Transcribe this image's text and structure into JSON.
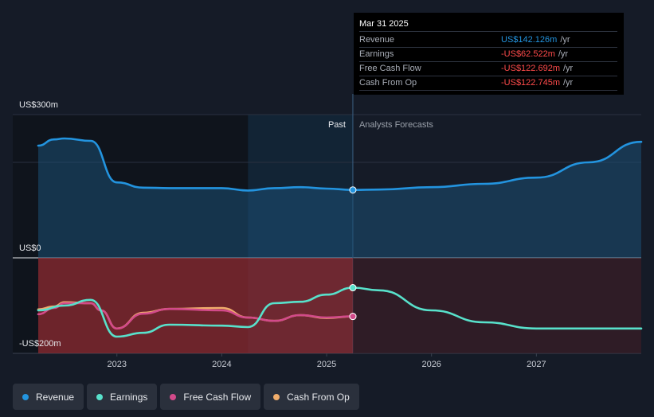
{
  "chart_data": {
    "type": "line",
    "y_axis_labels": [
      {
        "text": "US$300m",
        "value": 300
      },
      {
        "text": "US$0",
        "value": 0
      },
      {
        "text": "-US$200m",
        "value": -200
      }
    ],
    "ylim": [
      -200,
      300
    ],
    "xlim": [
      2022.25,
      2028.0
    ],
    "x_ticks": [
      {
        "label": "2023",
        "value": 2023.0
      },
      {
        "label": "2024",
        "value": 2024.0
      },
      {
        "label": "2025",
        "value": 2025.0
      },
      {
        "label": "2026",
        "value": 2026.0
      },
      {
        "label": "2027",
        "value": 2027.0
      }
    ],
    "past_label": "Past",
    "forecast_label": "Analysts Forecasts",
    "past_end": 2025.25,
    "past_highlight_start": 2024.25,
    "series": [
      {
        "name": "Revenue",
        "color": "#2394df",
        "x": [
          2022.25,
          2022.4,
          2022.5,
          2022.75,
          2023.0,
          2023.25,
          2023.5,
          2024.0,
          2024.25,
          2024.5,
          2024.75,
          2025.0,
          2025.25,
          2025.5,
          2026.0,
          2026.5,
          2027.0,
          2027.5,
          2028.0
        ],
        "y": [
          235,
          248,
          250,
          245,
          158,
          147,
          146,
          146,
          141,
          146,
          148,
          145,
          142.126,
          143,
          148,
          155,
          168,
          200,
          243
        ]
      },
      {
        "name": "Earnings",
        "color": "#58e1cb",
        "x": [
          2022.25,
          2022.5,
          2022.75,
          2023.0,
          2023.25,
          2023.5,
          2024.0,
          2024.25,
          2024.5,
          2024.75,
          2025.0,
          2025.25,
          2025.5,
          2026.0,
          2026.5,
          2027.0,
          2027.5,
          2028.0
        ],
        "y": [
          -110,
          -100,
          -88,
          -165,
          -157,
          -140,
          -142,
          -145,
          -95,
          -92,
          -77,
          -62.522,
          -68,
          -110,
          -135,
          -148,
          -148,
          -148
        ]
      },
      {
        "name": "Free Cash Flow",
        "color": "#d24a8a",
        "x": [
          2022.25,
          2022.4,
          2022.5,
          2022.75,
          2022.85,
          2023.0,
          2023.25,
          2023.5,
          2024.0,
          2024.25,
          2024.5,
          2024.75,
          2025.0,
          2025.25
        ],
        "y": [
          -118,
          -105,
          -95,
          -95,
          -110,
          -148,
          -117,
          -107,
          -110,
          -125,
          -132,
          -120,
          -125,
          -122.692
        ]
      },
      {
        "name": "Cash From Op",
        "color": "#f0ad6c",
        "x": [
          2022.25,
          2022.4,
          2022.5,
          2022.75,
          2022.85,
          2023.0,
          2023.25,
          2023.5,
          2024.0,
          2024.25,
          2024.5,
          2024.75,
          2025.0,
          2025.25
        ],
        "y": [
          -108,
          -102,
          -93,
          -95,
          -110,
          -148,
          -115,
          -107,
          -105,
          -125,
          -132,
          -120,
          -126,
          -122.745
        ]
      }
    ],
    "tooltip": {
      "date": "Mar 31 2025",
      "rows": [
        {
          "label": "Revenue",
          "value": "US$142.126m",
          "suffix": "/yr",
          "color": "#2394df"
        },
        {
          "label": "Earnings",
          "value": "-US$62.522m",
          "suffix": "/yr",
          "color": "#ff4b4b"
        },
        {
          "label": "Free Cash Flow",
          "value": "-US$122.692m",
          "suffix": "/yr",
          "color": "#ff4b4b"
        },
        {
          "label": "Cash From Op",
          "value": "-US$122.745m",
          "suffix": "/yr",
          "color": "#ff4b4b"
        }
      ]
    },
    "legend": [
      {
        "label": "Revenue",
        "color": "#2394df"
      },
      {
        "label": "Earnings",
        "color": "#58e1cb"
      },
      {
        "label": "Free Cash Flow",
        "color": "#d24a8a"
      },
      {
        "label": "Cash From Op",
        "color": "#f0ad6c"
      }
    ]
  }
}
